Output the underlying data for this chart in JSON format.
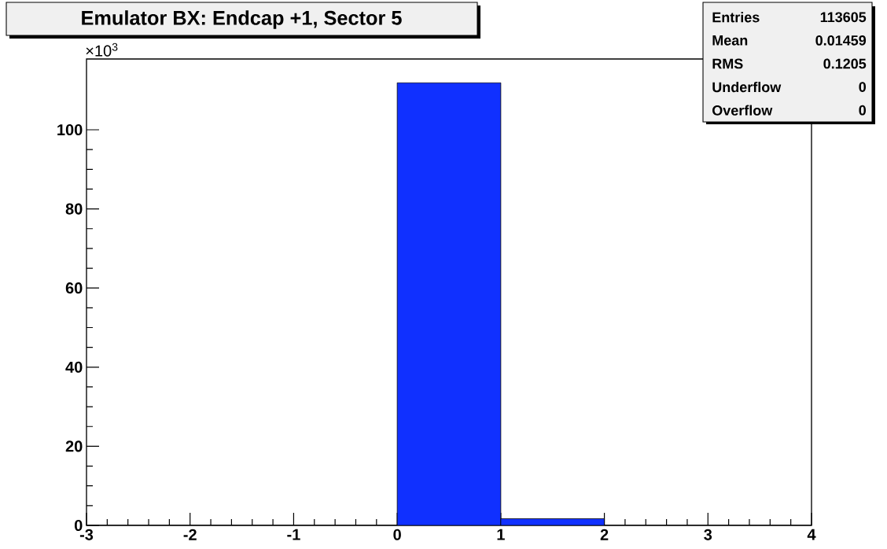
{
  "chart_data": {
    "type": "histogram",
    "title": "Emulator BX:  Endcap +1, Sector 5",
    "bins": [
      -3,
      -2,
      -1,
      0,
      1,
      2,
      3,
      4
    ],
    "values": [
      0,
      0,
      0,
      111.9,
      1.7,
      0,
      0
    ],
    "color": "#1030ff",
    "xlim": [
      -3,
      4
    ],
    "ylim": [
      0,
      117.9
    ],
    "xticks": [
      -3,
      -2,
      -1,
      0,
      1,
      2,
      3,
      4
    ],
    "yticks": [
      0,
      20,
      40,
      60,
      80,
      100
    ],
    "annotations": [
      "×10$^{3}$",
      "Entries",
      "113605",
      "Mean",
      "0.01459",
      "RMS",
      "0.1205",
      "Underflow",
      "0",
      "Overflow",
      "0"
    ]
  }
}
